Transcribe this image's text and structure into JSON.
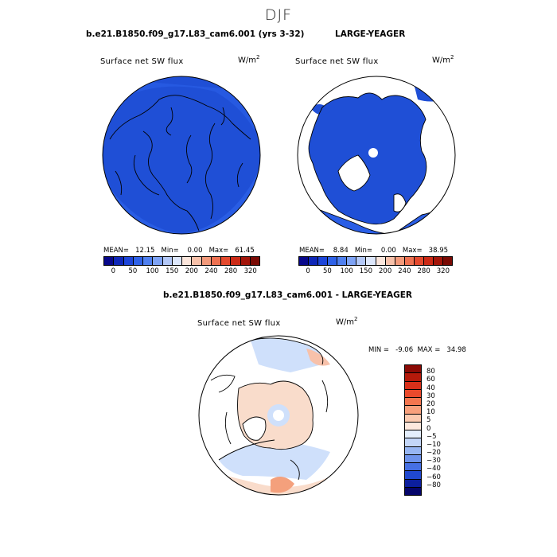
{
  "figure": {
    "season": "DJF"
  },
  "panel_a": {
    "title": "b.e21.B1850.f09_g17.L83_cam6.001 (yrs 3-32)",
    "field": "Surface net SW flux",
    "units_base": "W/m",
    "units_exp": "2",
    "stats": "MEAN=   12.15   Min=    0.00   Max=   61.45",
    "fill_color": "#1f4fd6",
    "fill_color_2": "#2a5ee6"
  },
  "panel_b": {
    "title": "LARGE-YEAGER",
    "field": "Surface net SW flux",
    "units_base": "W/m",
    "units_exp": "2",
    "stats": "MEAN=    8.84   Min=    0.00   Max=   38.95",
    "fill_color": "#1f4fd6",
    "fill_color_2": "#2a5ee6"
  },
  "colorbar_top": {
    "labels": [
      "0",
      "50",
      "100",
      "150",
      "200",
      "240",
      "280",
      "320"
    ],
    "colors": [
      "#08088a",
      "#0f27b8",
      "#1d45d9",
      "#2f62e8",
      "#4f80f0",
      "#7ea3f5",
      "#b3c8f7",
      "#dde7fb",
      "#fbe6dc",
      "#f7c1aa",
      "#f39a7b",
      "#ee7151",
      "#e4492d",
      "#cc2a16",
      "#a3150a",
      "#7a0a04"
    ]
  },
  "panel_diff": {
    "title": "b.e21.B1850.f09_g17.L83_cam6.001 - LARGE-YEAGER",
    "field": "Surface net SW flux",
    "units_base": "W/m",
    "units_exp": "2",
    "stats": "MIN =   -9.06  MAX =   34.98",
    "pos_color": "#f9dccb",
    "neg_color": "#cfe0fb"
  },
  "colorbar_diff": {
    "labels": [
      "80",
      "60",
      "40",
      "30",
      "20",
      "10",
      "5",
      "0",
      "−5",
      "−10",
      "−20",
      "−30",
      "−40",
      "−60",
      "−80"
    ],
    "colors": [
      "#8b0a05",
      "#b51a0b",
      "#d9301a",
      "#ea4a2c",
      "#f4764f",
      "#f8a07c",
      "#fbcab0",
      "#fde8dd",
      "#e4eefc",
      "#c3d6f8",
      "#97b6f3",
      "#6e93ec",
      "#4670e4",
      "#2048cf",
      "#0c1f9e",
      "#05056a"
    ]
  }
}
